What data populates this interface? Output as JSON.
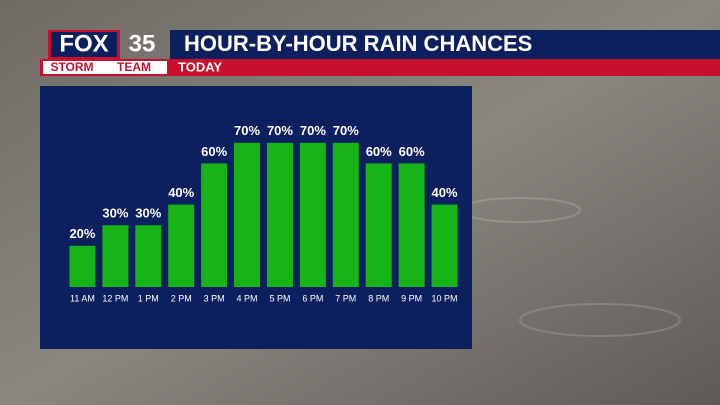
{
  "branding": {
    "network": "FOX",
    "channel": "35",
    "team_left": "STORM",
    "team_right": "TEAM"
  },
  "chart_data": {
    "type": "bar",
    "title": "HOUR-BY-HOUR RAIN CHANCES",
    "subtitle": "TODAY",
    "categories": [
      "11 AM",
      "12 PM",
      "1 PM",
      "2 PM",
      "3 PM",
      "4 PM",
      "5 PM",
      "6 PM",
      "7 PM",
      "8 PM",
      "9 PM",
      "10 PM"
    ],
    "values": [
      20,
      30,
      30,
      40,
      60,
      70,
      70,
      70,
      70,
      60,
      60,
      40
    ],
    "value_labels": [
      "20%",
      "30%",
      "30%",
      "40%",
      "60%",
      "70%",
      "70%",
      "70%",
      "70%",
      "60%",
      "60%",
      "40%"
    ],
    "color": "#16b416"
  }
}
